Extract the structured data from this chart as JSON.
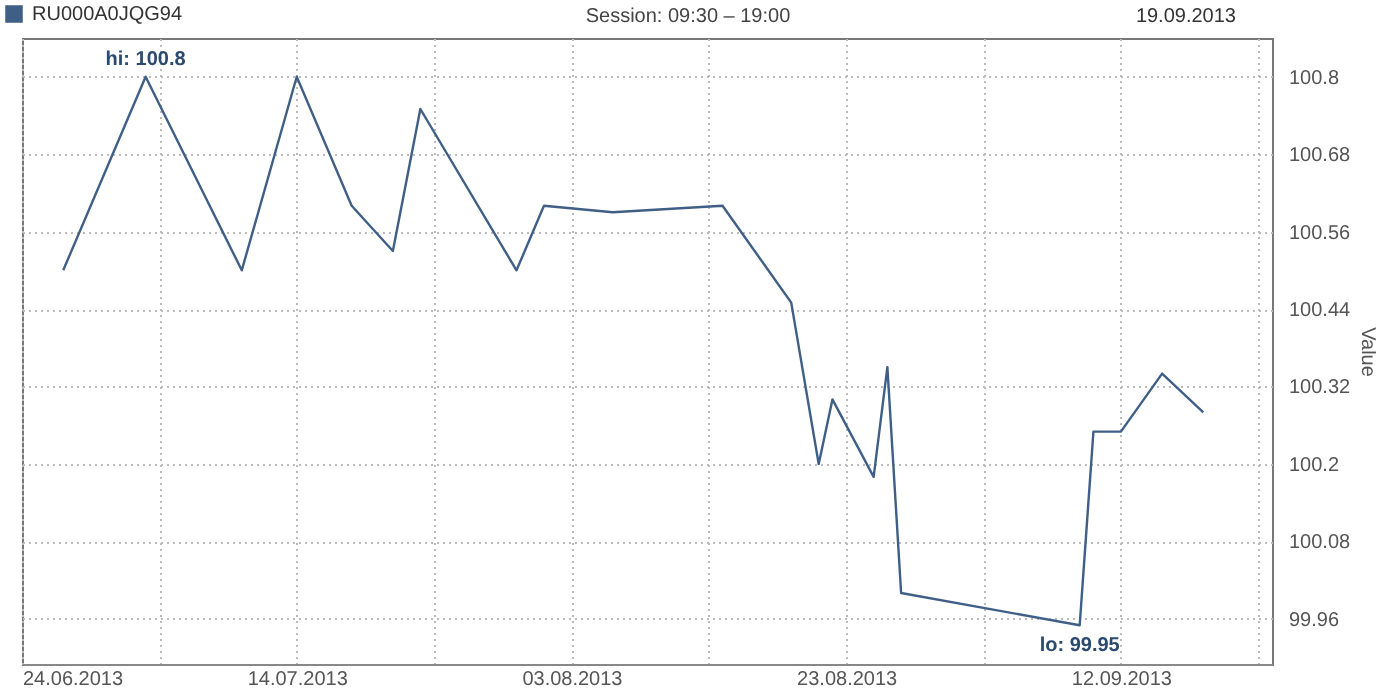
{
  "chart_data": {
    "type": "line",
    "title": "Session: 09:30 – 19:00",
    "ylabel": "Value",
    "annotations": [
      "19.09.2013",
      {
        "text": "hi: 100.8",
        "x": "2013-07-03",
        "y": 100.8
      },
      {
        "text": "lo: 99.95",
        "x": "2013-09-09",
        "y": 99.95
      }
    ],
    "x": [
      "2013-06-27",
      "2013-07-03",
      "2013-07-10",
      "2013-07-14",
      "2013-07-18",
      "2013-07-21",
      "2013-07-23",
      "2013-07-30",
      "2013-08-01",
      "2013-08-06",
      "2013-08-14",
      "2013-08-19",
      "2013-08-21",
      "2013-08-22",
      "2013-08-25",
      "2013-08-26",
      "2013-08-27",
      "2013-09-09",
      "2013-09-10",
      "2013-09-12",
      "2013-09-15",
      "2013-09-18"
    ],
    "series": [
      {
        "name": "RU000A0JQG94",
        "color": "#3f5f86",
        "values": [
          100.5,
          100.8,
          100.5,
          100.8,
          100.6,
          100.53,
          100.75,
          100.5,
          100.6,
          100.59,
          100.6,
          100.45,
          100.2,
          100.3,
          100.18,
          100.35,
          100.0,
          99.95,
          100.25,
          100.25,
          100.34,
          100.28
        ]
      }
    ],
    "xlim": [
      "2013-06-24",
      "2013-09-23"
    ],
    "xticks": [
      {
        "value": "2013-06-24",
        "label": "24.06.2013"
      },
      {
        "value": "2013-07-04",
        "label": null
      },
      {
        "value": "2013-07-14",
        "label": "14.07.2013"
      },
      {
        "value": "2013-07-24",
        "label": null
      },
      {
        "value": "2013-08-03",
        "label": "03.08.2013"
      },
      {
        "value": "2013-08-13",
        "label": null
      },
      {
        "value": "2013-08-23",
        "label": "23.08.2013"
      },
      {
        "value": "2013-09-02",
        "label": null
      },
      {
        "value": "2013-09-12",
        "label": "12.09.2013"
      },
      {
        "value": "2013-09-22",
        "label": null
      }
    ],
    "ylim": [
      99.89,
      100.86
    ],
    "yticks": [
      99.96,
      100.08,
      100.2,
      100.32,
      100.44,
      100.56,
      100.68,
      100.8
    ],
    "grid": true,
    "legend": "top left"
  }
}
